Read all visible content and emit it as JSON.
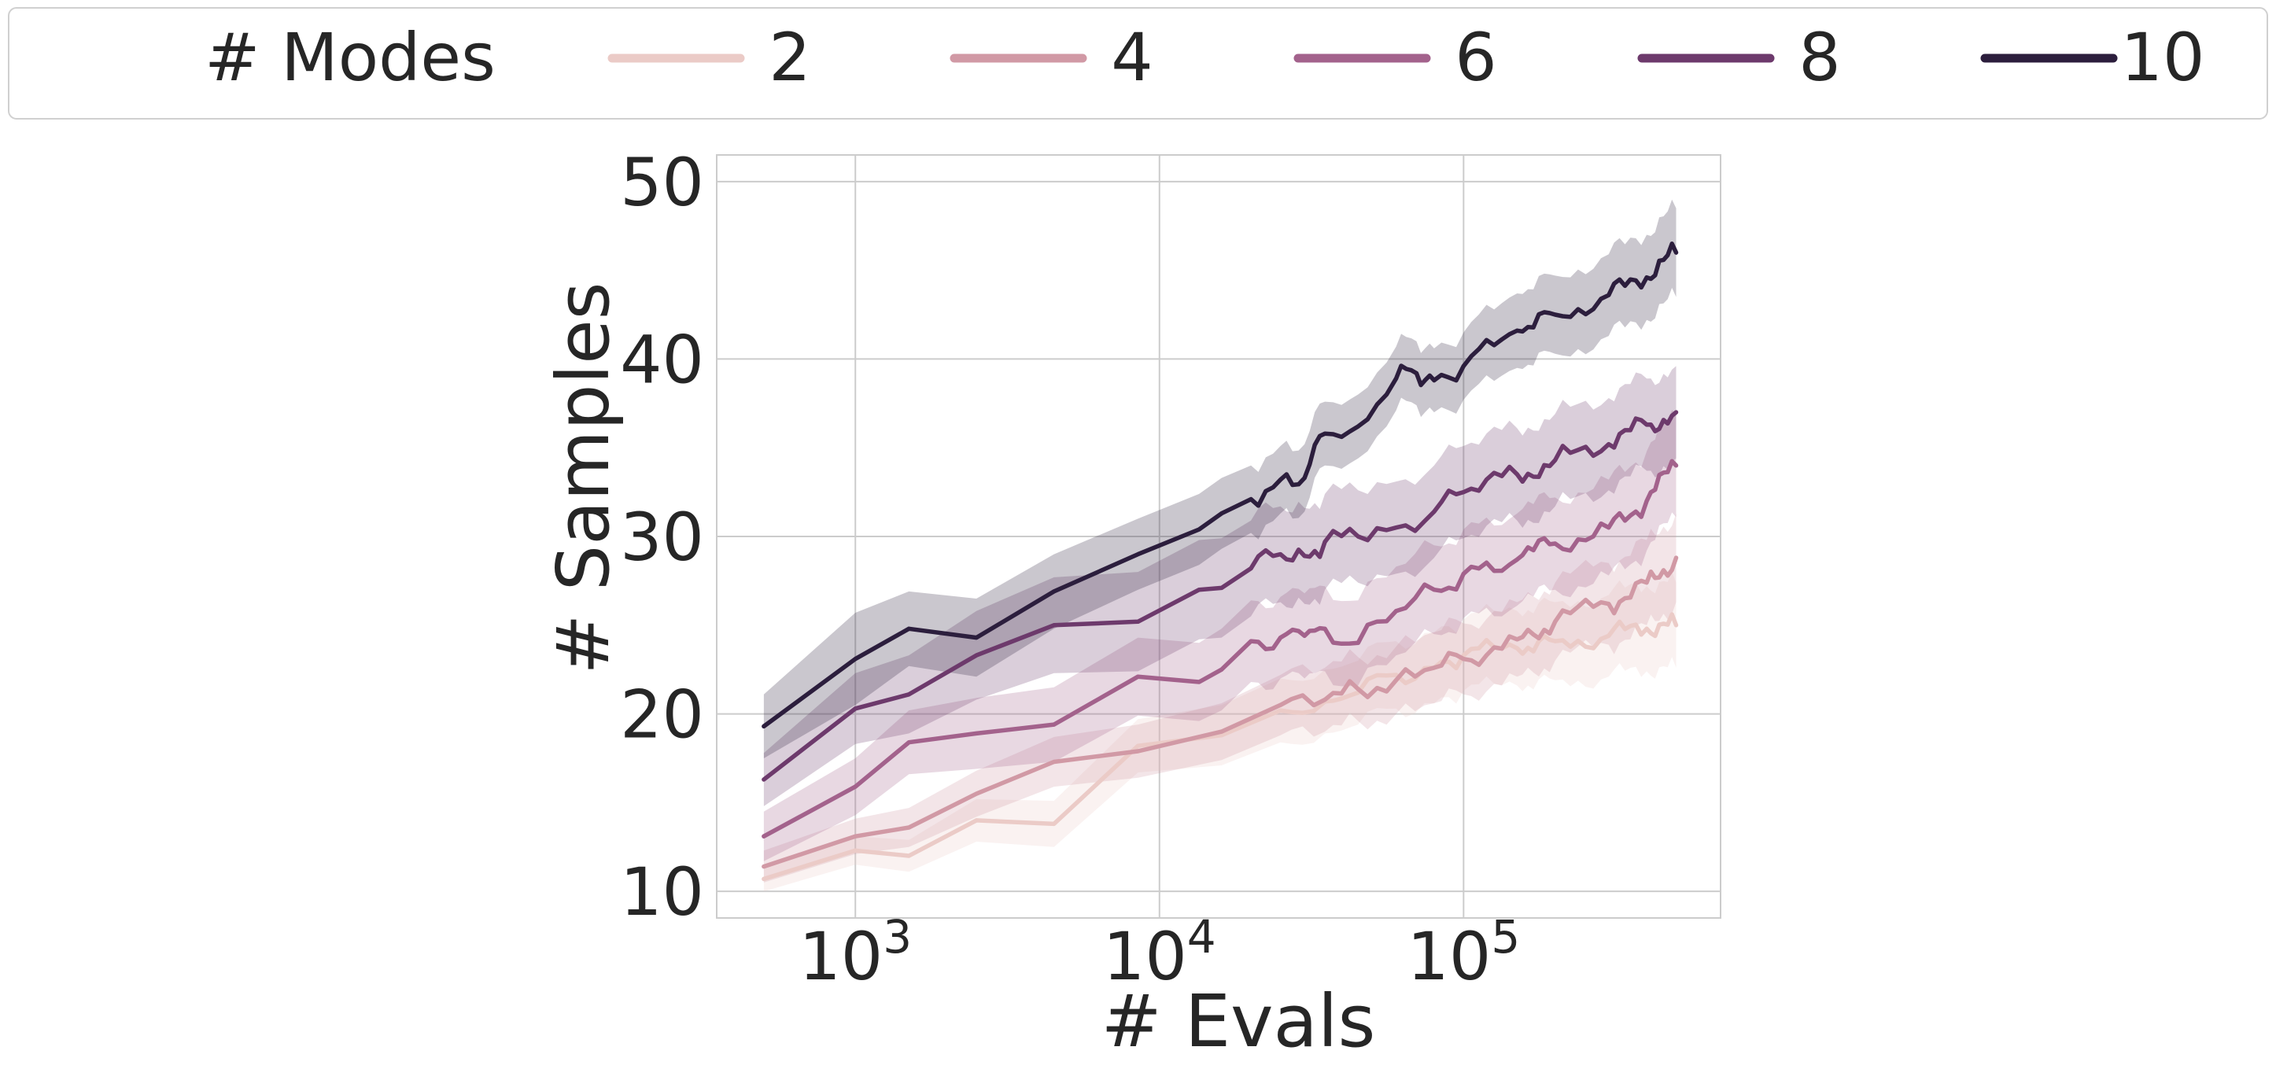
{
  "chart_data": {
    "type": "line",
    "title": "",
    "xlabel": "# Evals",
    "ylabel": "# Samples",
    "xscale": "log",
    "xlim": [
      350,
      700000
    ],
    "ylim": [
      8.5,
      51.5
    ],
    "x_ticks": [
      1000,
      10000,
      100000
    ],
    "x_tick_labels": [
      {
        "base": "10",
        "exp": "3"
      },
      {
        "base": "10",
        "exp": "4"
      },
      {
        "base": "10",
        "exp": "5"
      }
    ],
    "y_ticks": [
      10,
      20,
      30,
      40,
      50
    ],
    "y_tick_labels": [
      "10",
      "20",
      "30",
      "40",
      "50"
    ],
    "grid": true,
    "legend": {
      "title": "# Modes",
      "placement": "top"
    },
    "series": [
      {
        "name": "2",
        "color": "#ebcbc7",
        "x": [
          500,
          1000,
          1500,
          2500,
          4500,
          8500,
          16000,
          25000,
          35000,
          45000,
          60000,
          80000,
          100000,
          150000,
          200000,
          300000,
          400000,
          500000
        ],
        "y": [
          10.7,
          12.3,
          12.0,
          14.0,
          13.8,
          18.2,
          18.8,
          20.2,
          20.7,
          21.2,
          22.2,
          22.6,
          23.3,
          23.7,
          24.1,
          24.4,
          24.8,
          25.0
        ],
        "band": [
          0.7,
          0.8,
          0.9,
          1.2,
          1.3,
          1.5,
          1.7,
          1.8,
          1.8,
          1.8,
          1.9,
          2.0,
          2.0,
          2.1,
          2.2,
          2.3,
          2.4,
          2.4
        ]
      },
      {
        "name": "4",
        "color": "#d199a5",
        "x": [
          500,
          1000,
          1500,
          2500,
          4500,
          8500,
          16000,
          25000,
          35000,
          45000,
          60000,
          80000,
          100000,
          150000,
          200000,
          300000,
          400000,
          500000
        ],
        "y": [
          11.4,
          13.1,
          13.6,
          15.5,
          17.3,
          17.9,
          19.0,
          20.5,
          20.8,
          21.4,
          21.9,
          22.6,
          23.1,
          24.2,
          25.2,
          26.2,
          27.4,
          28.8
        ],
        "band": [
          0.9,
          1.0,
          1.1,
          1.3,
          1.4,
          1.5,
          1.6,
          1.7,
          1.8,
          1.8,
          1.9,
          2.0,
          2.0,
          2.1,
          2.2,
          2.3,
          2.4,
          2.5
        ]
      },
      {
        "name": "6",
        "color": "#a3628c",
        "x": [
          500,
          1000,
          1500,
          2500,
          4500,
          8500,
          13500,
          16000,
          20000,
          25000,
          30000,
          35000,
          45000,
          60000,
          80000,
          100000,
          150000,
          200000,
          300000,
          400000,
          500000
        ],
        "y": [
          13.1,
          15.9,
          18.4,
          18.9,
          19.4,
          22.1,
          21.8,
          22.5,
          24.1,
          24.3,
          24.4,
          24.8,
          24.0,
          25.8,
          27.0,
          27.9,
          28.7,
          29.6,
          30.5,
          32.0,
          34.0
        ],
        "band": [
          1.4,
          1.6,
          1.8,
          2.0,
          2.1,
          2.2,
          2.2,
          2.3,
          2.3,
          2.3,
          2.4,
          2.4,
          2.4,
          2.5,
          2.5,
          2.5,
          2.6,
          2.6,
          2.7,
          2.8,
          2.9
        ]
      },
      {
        "name": "8",
        "color": "#6d3a6c",
        "x": [
          500,
          1000,
          1500,
          2500,
          4500,
          8500,
          13500,
          16000,
          20000,
          25000,
          30000,
          35000,
          45000,
          60000,
          80000,
          100000,
          150000,
          200000,
          300000,
          400000,
          500000
        ],
        "y": [
          16.3,
          20.3,
          21.1,
          23.3,
          25.0,
          25.2,
          27.0,
          27.1,
          28.2,
          29.0,
          28.9,
          29.7,
          30.0,
          30.5,
          31.4,
          32.5,
          33.5,
          34.3,
          35.2,
          36.3,
          37.0
        ],
        "band": [
          1.5,
          2.0,
          2.2,
          2.5,
          2.7,
          2.8,
          2.8,
          2.8,
          2.7,
          2.7,
          2.7,
          2.7,
          2.6,
          2.6,
          2.6,
          2.6,
          2.6,
          2.6,
          2.6,
          2.6,
          2.6
        ]
      },
      {
        "name": "10",
        "color": "#2c1e3d",
        "x": [
          500,
          1000,
          1500,
          2500,
          4500,
          8500,
          13500,
          16000,
          20000,
          25000,
          30000,
          35000,
          45000,
          60000,
          70000,
          80000,
          100000,
          150000,
          200000,
          300000,
          400000,
          500000
        ],
        "y": [
          19.3,
          23.1,
          24.8,
          24.3,
          26.9,
          29.0,
          30.4,
          31.3,
          32.1,
          33.2,
          33.3,
          35.8,
          36.2,
          38.9,
          39.2,
          38.8,
          39.6,
          41.6,
          42.5,
          43.6,
          44.6,
          46.0
        ],
        "band": [
          1.8,
          2.6,
          2.1,
          2.2,
          2.1,
          2.0,
          2.0,
          2.0,
          1.9,
          1.9,
          1.9,
          1.8,
          1.8,
          1.8,
          1.8,
          1.8,
          1.9,
          2.1,
          2.2,
          2.3,
          2.4,
          2.5
        ]
      }
    ]
  }
}
